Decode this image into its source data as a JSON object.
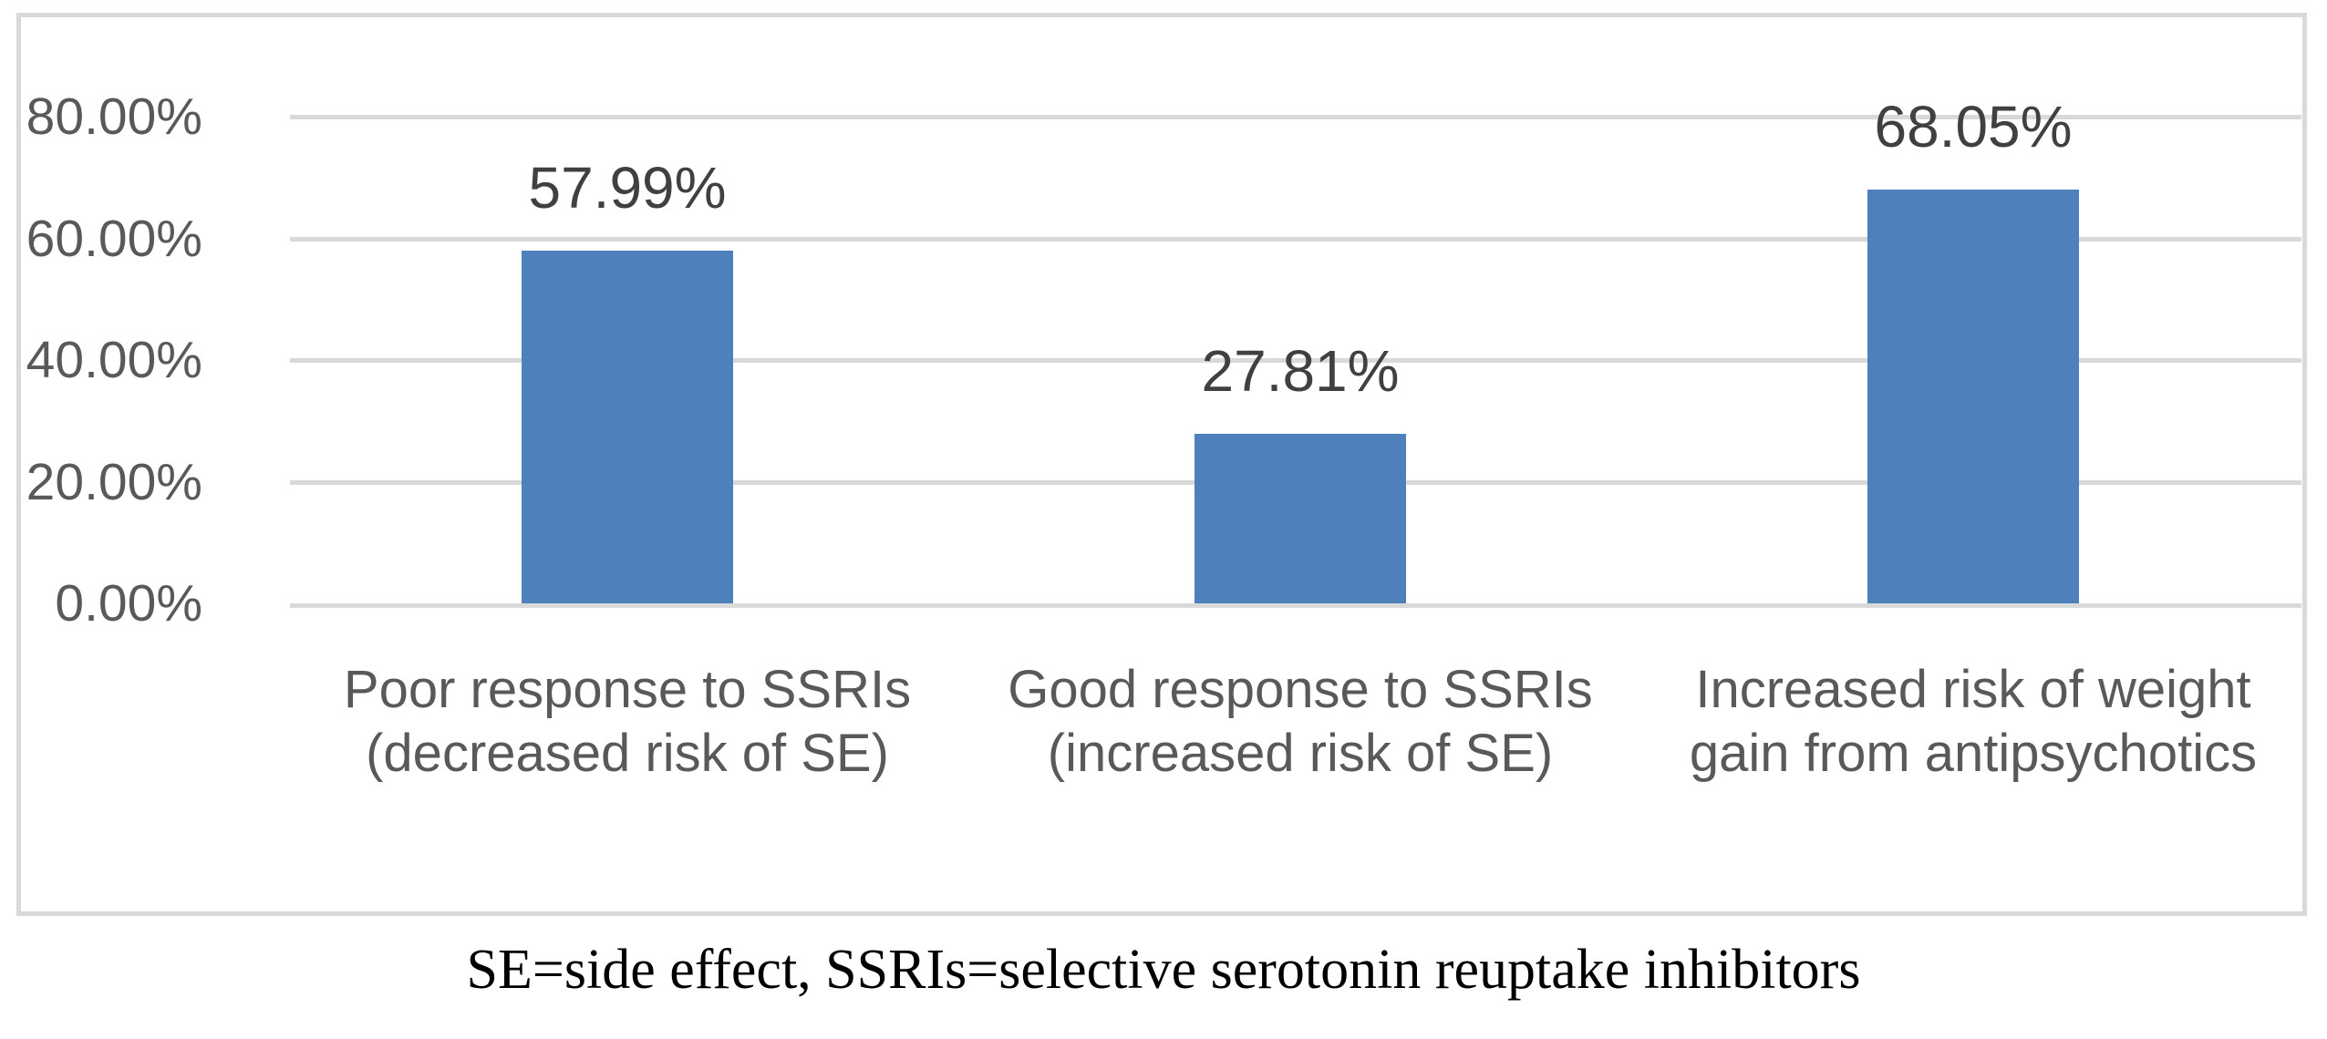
{
  "chart_data": {
    "type": "bar",
    "title": "",
    "xlabel": "",
    "ylabel": "",
    "categories": [
      "Poor response to SSRIs (decreased risk of SE)",
      "Good response to SSRIs (increased risk of SE)",
      "Increased risk of weight gain from antipsychotics"
    ],
    "category_lines": [
      [
        "Poor response to SSRIs",
        "(decreased risk of SE)"
      ],
      [
        "Good response to SSRIs",
        "(increased risk of SE)"
      ],
      [
        "Increased risk of weight",
        "gain from antipsychotics"
      ]
    ],
    "values": [
      57.99,
      27.81,
      68.05
    ],
    "value_labels": [
      "57.99%",
      "27.81%",
      "68.05%"
    ],
    "y_ticks": [
      "80.00%",
      "60.00%",
      "40.00%",
      "20.00%",
      "0.00%"
    ],
    "y_tick_values": [
      80,
      60,
      40,
      20,
      0
    ],
    "ylim": [
      0,
      80
    ],
    "grid": true,
    "legend": "none",
    "style": {
      "bar_color": "#4e80bc",
      "grid_color": "#d9d9d9",
      "frame_color": "#d9d9d9",
      "axis_label_color": "#595959",
      "value_label_color": "#404040",
      "category_label_color": "#595959"
    }
  },
  "caption": "SE=side effect, SSRIs=selective serotonin reuptake inhibitors"
}
